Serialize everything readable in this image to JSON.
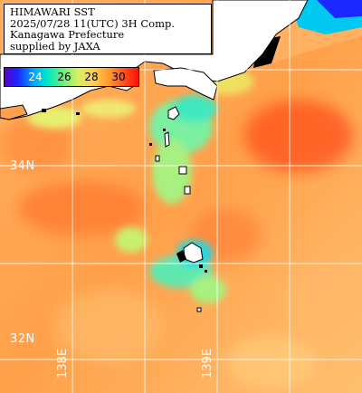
{
  "info": {
    "line1": "HIMAWARI SST",
    "line2": "2025/07/28 11(UTC) 3H Comp.",
    "line3": "Kanagawa Prefecture",
    "line4": "supplied by JAXA"
  },
  "legend": {
    "ticks": [
      "24",
      "26",
      "28",
      "30"
    ],
    "unit": ""
  },
  "grid": {
    "lat_labels": [
      "34N",
      "32N"
    ],
    "lon_labels": [
      "138E",
      "139E"
    ]
  },
  "colors": {
    "land": "#ffffff",
    "no_data": "#000000",
    "grid": "#ffffff",
    "sst_warm": "#ff9a40",
    "sst_hot": "#ff5a20",
    "sst_cool": "#7af0a0",
    "sst_cold": "#00c8f0"
  }
}
